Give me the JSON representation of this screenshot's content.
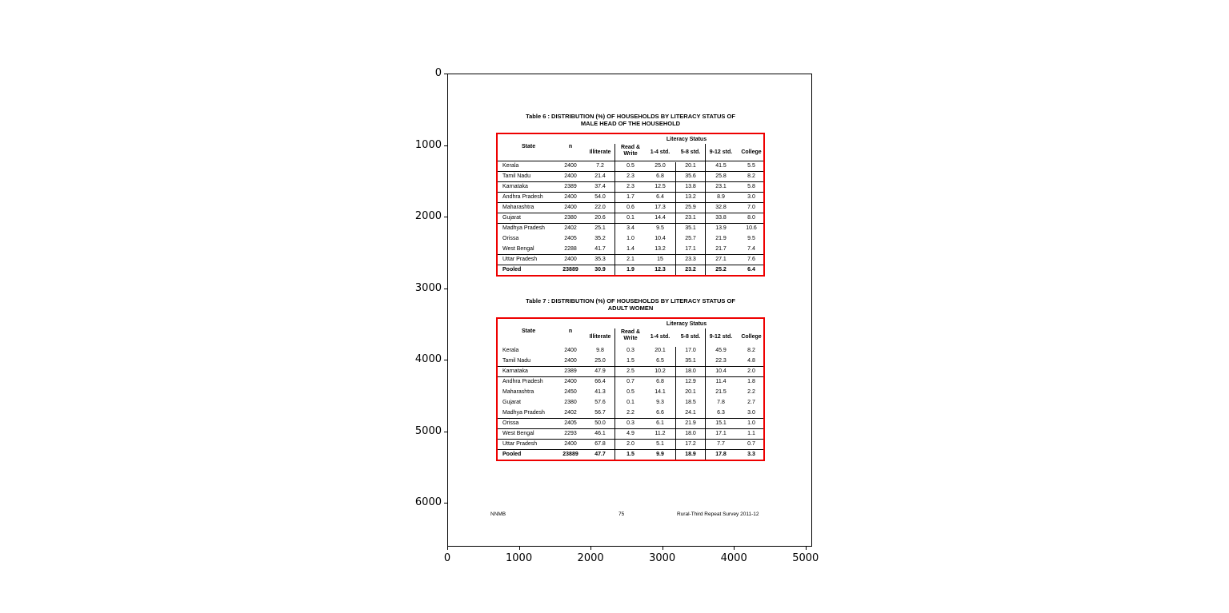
{
  "axes": {
    "x_ticks": [
      "0",
      "1000",
      "2000",
      "3000",
      "4000",
      "5000"
    ],
    "y_ticks": [
      "0",
      "1000",
      "2000",
      "3000",
      "4000",
      "5000",
      "6000"
    ]
  },
  "document": {
    "tables": [
      {
        "title_line1": "Table 6 : DISTRIBUTION (%) OF HOUSEHOLDS BY LITERACY STATUS OF",
        "title_line2": "MALE HEAD OF THE HOUSEHOLD",
        "group_header": "Literacy Status",
        "columns": [
          "State",
          "n",
          "Illiterate",
          "Read & Write",
          "1-4 std.",
          "5-8 std.",
          "9-12 std.",
          "College"
        ],
        "rows": [
          [
            "Kerala",
            "2400",
            "7.2",
            "0.5",
            "25.0",
            "20.1",
            "41.5",
            "5.5"
          ],
          [
            "Tamil Nadu",
            "2400",
            "21.4",
            "2.3",
            "6.8",
            "35.6",
            "25.8",
            "8.2"
          ],
          [
            "Karnataka",
            "2389",
            "37.4",
            "2.3",
            "12.5",
            "13.8",
            "23.1",
            "5.8"
          ],
          [
            "Andhra Pradesh",
            "2400",
            "54.0",
            "1.7",
            "6.4",
            "13.2",
            "8.9",
            "3.0"
          ],
          [
            "Maharashtra",
            "2400",
            "22.0",
            "0.6",
            "17.3",
            "25.9",
            "32.8",
            "7.0"
          ],
          [
            "Gujarat",
            "2380",
            "20.6",
            "0.1",
            "14.4",
            "23.1",
            "33.8",
            "8.0"
          ],
          [
            "Madhya Pradesh",
            "2402",
            "25.1",
            "3.4",
            "9.5",
            "35.1",
            "13.9",
            "10.6"
          ],
          [
            "Orissa",
            "2405",
            "35.2",
            "1.0",
            "10.4",
            "25.7",
            "21.9",
            "9.5"
          ],
          [
            "West Bengal",
            "2288",
            "41.7",
            "1.4",
            "13.2",
            "17.1",
            "21.7",
            "7.4"
          ],
          [
            "Uttar Pradesh",
            "2400",
            "35.3",
            "2.1",
            "15",
            "23.3",
            "27.1",
            "7.6"
          ],
          [
            "Pooled",
            "23889",
            "30.9",
            "1.9",
            "12.3",
            "23.2",
            "25.2",
            "6.4"
          ]
        ]
      },
      {
        "title_line1": "Table 7 : DISTRIBUTION (%) OF HOUSEHOLDS BY LITERACY STATUS OF",
        "title_line2": "ADULT WOMEN",
        "group_header": "Literacy Status",
        "columns": [
          "State",
          "n",
          "Illiterate",
          "Read & Write",
          "1-4 std.",
          "5-8 std.",
          "9-12 std.",
          "College"
        ],
        "rows": [
          [
            "Kerala",
            "2400",
            "9.8",
            "0.3",
            "20.1",
            "17.0",
            "45.9",
            "8.2"
          ],
          [
            "Tamil Nadu",
            "2400",
            "25.0",
            "1.5",
            "6.5",
            "35.1",
            "22.3",
            "4.8"
          ],
          [
            "Karnataka",
            "2389",
            "47.9",
            "2.5",
            "10.2",
            "18.0",
            "10.4",
            "2.0"
          ],
          [
            "Andhra Pradesh",
            "2400",
            "66.4",
            "0.7",
            "6.8",
            "12.9",
            "11.4",
            "1.8"
          ],
          [
            "Maharashtra",
            "2450",
            "41.3",
            "0.5",
            "14.1",
            "20.1",
            "21.5",
            "2.2"
          ],
          [
            "Gujarat",
            "2380",
            "57.6",
            "0.1",
            "9.3",
            "18.5",
            "7.8",
            "2.7"
          ],
          [
            "Madhya Pradesh",
            "2402",
            "56.7",
            "2.2",
            "6.6",
            "24.1",
            "6.3",
            "3.0"
          ],
          [
            "Orissa",
            "2405",
            "50.0",
            "0.3",
            "6.1",
            "21.9",
            "15.1",
            "1.0"
          ],
          [
            "West Bengal",
            "2293",
            "46.1",
            "4.9",
            "11.2",
            "18.0",
            "17.1",
            "1.1"
          ],
          [
            "Uttar Pradesh",
            "2400",
            "67.8",
            "2.0",
            "5.1",
            "17.2",
            "7.7",
            "0.7"
          ],
          [
            "Pooled",
            "23889",
            "47.7",
            "1.5",
            "9.9",
            "18.9",
            "17.8",
            "3.3"
          ]
        ]
      }
    ],
    "footer": {
      "left": "NNMB",
      "center": "75",
      "right": "Rural-Third Repeat Survey 2011-12"
    },
    "highlight_color": "#ee0000"
  }
}
